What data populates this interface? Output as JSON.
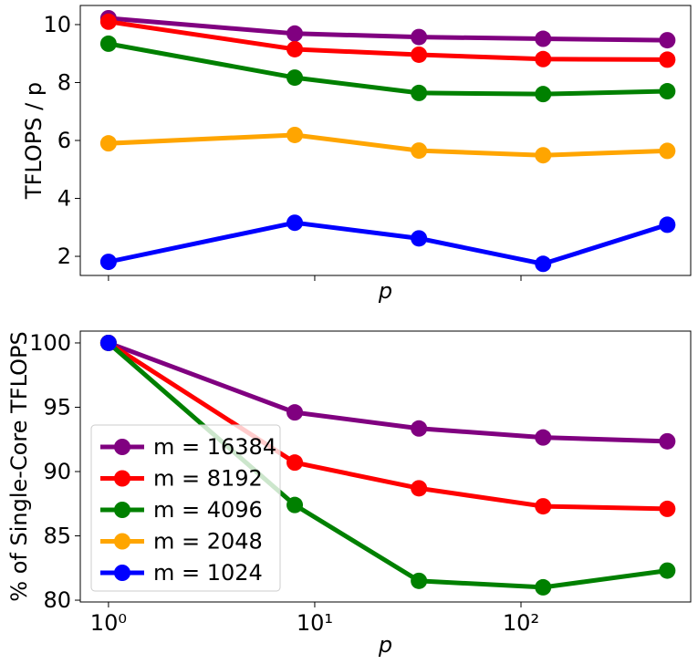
{
  "chart_data": [
    {
      "type": "line",
      "xlabel": "p",
      "ylabel": "TFLOPS / p",
      "x": [
        1,
        8,
        32,
        128,
        512
      ],
      "xscale": "log",
      "xlim": [
        0.73,
        665
      ],
      "xticks": [
        1,
        10,
        100
      ],
      "ylim": [
        1.34,
        10.66
      ],
      "yticks": [
        2,
        4,
        6,
        8,
        10
      ],
      "series": [
        {
          "name": "m = 16384",
          "color": "#800080",
          "values": [
            10.22,
            9.69,
            9.57,
            9.51,
            9.46
          ]
        },
        {
          "name": "m = 8192",
          "color": "#ff0000",
          "values": [
            10.1,
            9.15,
            8.96,
            8.81,
            8.79
          ]
        },
        {
          "name": "m = 4096",
          "color": "#008000",
          "values": [
            9.34,
            8.17,
            7.64,
            7.6,
            7.7
          ]
        },
        {
          "name": "m = 2048",
          "color": "#ffa500",
          "values": [
            5.9,
            6.19,
            5.65,
            5.49,
            5.64
          ]
        },
        {
          "name": "m = 1024",
          "color": "#0000ff",
          "values": [
            1.81,
            3.16,
            2.62,
            1.74,
            3.09
          ]
        }
      ]
    },
    {
      "type": "line",
      "xlabel": "p",
      "ylabel": "% of Single-Core TFLOPS",
      "x": [
        1,
        8,
        32,
        128,
        512
      ],
      "xscale": "log",
      "xlim": [
        0.73,
        665
      ],
      "xticks": [
        {
          "value": 1,
          "label": "10⁰"
        },
        {
          "value": 10,
          "label": "10¹"
        },
        {
          "value": 100,
          "label": "10²"
        }
      ],
      "ylim": [
        79.86,
        100.92
      ],
      "yticks": [
        80,
        85,
        90,
        95,
        100
      ],
      "legend": "lower left",
      "series": [
        {
          "name": "m = 16384",
          "color": "#800080",
          "values": [
            100,
            94.6,
            93.35,
            92.65,
            92.35
          ]
        },
        {
          "name": "m = 8192",
          "color": "#ff0000",
          "values": [
            100,
            90.7,
            88.7,
            87.3,
            87.1
          ]
        },
        {
          "name": "m = 4096",
          "color": "#008000",
          "values": [
            100,
            87.4,
            81.5,
            81.0,
            82.3
          ]
        },
        {
          "name": "m = 2048",
          "color": "#ffa500",
          "values": [
            100,
            null,
            null,
            null,
            null
          ]
        },
        {
          "name": "m = 1024",
          "color": "#0000ff",
          "values": [
            100,
            null,
            null,
            null,
            null
          ]
        }
      ]
    }
  ]
}
